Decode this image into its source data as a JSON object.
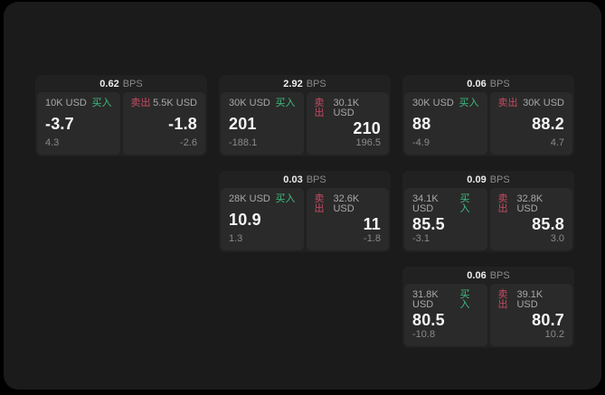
{
  "colors": {
    "backdrop": "#000000",
    "window_bg": "#1b1b1b",
    "card_bg": "#212121",
    "panel_bg": "#2a2a2a",
    "buy": "#3ebd81",
    "sell": "#c64a62",
    "price_text": "#f5f5f5",
    "muted_text": "#8a8a8a"
  },
  "labels": {
    "bps_unit": "BPS",
    "buy": "买入",
    "sell": "卖出"
  },
  "cards": [
    {
      "bps": "0.62",
      "buy": {
        "amount": "10K USD",
        "price": "-3.7",
        "delta": "4.3"
      },
      "sell": {
        "amount": "5.5K USD",
        "price": "-1.8",
        "delta": "-2.6"
      }
    },
    {
      "bps": "2.92",
      "buy": {
        "amount": "30K USD",
        "price": "201",
        "delta": "-188.1"
      },
      "sell": {
        "amount": "30.1K USD",
        "price": "210",
        "delta": "196.5"
      }
    },
    {
      "bps": "0.06",
      "buy": {
        "amount": "30K USD",
        "price": "88",
        "delta": "-4.9"
      },
      "sell": {
        "amount": "30K USD",
        "price": "88.2",
        "delta": "4.7"
      }
    },
    {
      "bps": "0.03",
      "buy": {
        "amount": "28K USD",
        "price": "10.9",
        "delta": "1.3"
      },
      "sell": {
        "amount": "32.6K USD",
        "price": "11",
        "delta": "-1.8"
      }
    },
    {
      "bps": "0.09",
      "buy": {
        "amount": "34.1K USD",
        "price": "85.5",
        "delta": "-3.1"
      },
      "sell": {
        "amount": "32.8K USD",
        "price": "85.8",
        "delta": "3.0"
      }
    },
    {
      "bps": "0.06",
      "buy": {
        "amount": "31.8K USD",
        "price": "80.5",
        "delta": "-10.8"
      },
      "sell": {
        "amount": "39.1K USD",
        "price": "80.7",
        "delta": "10.2"
      }
    }
  ]
}
